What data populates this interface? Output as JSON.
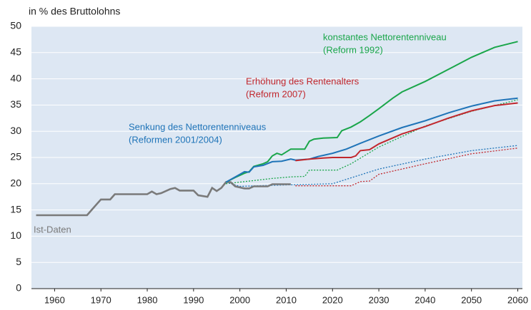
{
  "chart_data": {
    "type": "line",
    "ylabel": "in % des Bruttolohns",
    "xlim": [
      1955,
      2061
    ],
    "ylim": [
      0,
      50
    ],
    "xticks": [
      1960,
      1970,
      1980,
      1990,
      2000,
      2010,
      2020,
      2030,
      2040,
      2050,
      2060
    ],
    "yticks": [
      0,
      5,
      10,
      15,
      20,
      25,
      30,
      35,
      40,
      45,
      50
    ],
    "grid": true,
    "background": "#dde7f3",
    "series": [
      {
        "name": "Ist-Daten",
        "color": "#7a7a7a",
        "style": "solid",
        "width": 2.6,
        "x": [
          1956,
          1967,
          1969,
          1970,
          1972,
          1973,
          1980,
          1981,
          1982,
          1983,
          1985,
          1986,
          1987,
          1990,
          1991,
          1993,
          1994,
          1995,
          1996,
          1997,
          1998,
          1999,
          2000,
          2001,
          2002,
          2003,
          2006,
          2007,
          2011
        ],
        "values": [
          14,
          14,
          16,
          17,
          17,
          18,
          18,
          18.5,
          18,
          18.2,
          19,
          19.2,
          18.7,
          18.7,
          17.8,
          17.5,
          19.2,
          18.6,
          19.2,
          20.3,
          20.3,
          19.5,
          19.3,
          19.1,
          19.1,
          19.5,
          19.5,
          19.9,
          19.9
        ]
      },
      {
        "name": "konstantes Nettorentenniveau",
        "note": "(Reform 1992)",
        "color": "#1aa64a",
        "style": "solid",
        "width": 2,
        "x": [
          1997,
          1999,
          2001,
          2002,
          2003,
          2005,
          2006,
          2007,
          2008,
          2009,
          2011,
          2014,
          2015,
          2016,
          2018,
          2021,
          2022,
          2024,
          2026,
          2028,
          2030,
          2033,
          2035,
          2040,
          2045,
          2050,
          2055,
          2060
        ],
        "values": [
          20.3,
          21.2,
          22,
          22.3,
          23.3,
          23.8,
          24.2,
          25.3,
          25.8,
          25.5,
          26.6,
          26.6,
          28.1,
          28.5,
          28.7,
          28.8,
          30.1,
          30.8,
          31.8,
          33,
          34.3,
          36.3,
          37.5,
          39.5,
          41.8,
          44.1,
          46,
          47.1
        ]
      },
      {
        "name": "Erhöhung des Rentenalters",
        "note": "(Reform 2007)",
        "color": "#c1272d",
        "style": "solid",
        "width": 2,
        "x": [
          2012,
          2015,
          2018,
          2020,
          2024,
          2025,
          2026,
          2028,
          2030,
          2035,
          2040,
          2045,
          2050,
          2055,
          2060
        ],
        "values": [
          24.4,
          24.7,
          24.9,
          25,
          25,
          25.3,
          26.3,
          26.5,
          27.6,
          29.5,
          30.9,
          32.5,
          33.9,
          34.9,
          35.4
        ]
      },
      {
        "name": "Senkung des Nettorentenniveaus",
        "note": "(Reformen 2001/2004)",
        "color": "#1f74b8",
        "style": "solid",
        "width": 2,
        "x": [
          1997,
          2000,
          2001,
          2002,
          2003,
          2005,
          2007,
          2009,
          2011,
          2012,
          2015,
          2017,
          2020,
          2023,
          2026,
          2030,
          2035,
          2040,
          2045,
          2050,
          2055,
          2060
        ],
        "values": [
          20.3,
          21.8,
          22.3,
          22.2,
          23.2,
          23.5,
          24.2,
          24.3,
          24.7,
          24.5,
          24.7,
          25.2,
          25.8,
          26.6,
          27.7,
          29.1,
          30.7,
          32,
          33.5,
          34.8,
          35.8,
          36.3
        ]
      },
      {
        "color": "#1aa64a",
        "style": "dotted",
        "width": 1.3,
        "x": [
          1997,
          2007,
          2011,
          2014,
          2015,
          2021,
          2024,
          2030,
          2040,
          2050,
          2060
        ],
        "values": [
          20,
          21,
          21.3,
          21.4,
          22.6,
          22.6,
          23.8,
          27,
          31,
          33.8,
          36
        ]
      },
      {
        "color": "#1f74b8",
        "style": "dotted",
        "width": 1.3,
        "x": [
          1997,
          2000,
          2011,
          2020,
          2030,
          2040,
          2050,
          2060
        ],
        "values": [
          20.3,
          19.5,
          19.8,
          20,
          22.8,
          24.7,
          26.3,
          27.3
        ]
      },
      {
        "color": "#c1272d",
        "style": "dotted",
        "width": 1.3,
        "x": [
          2012,
          2024,
          2026,
          2028,
          2030,
          2040,
          2050,
          2060
        ],
        "values": [
          19.6,
          19.6,
          20.4,
          20.5,
          21.8,
          23.8,
          25.7,
          26.8
        ]
      }
    ]
  }
}
